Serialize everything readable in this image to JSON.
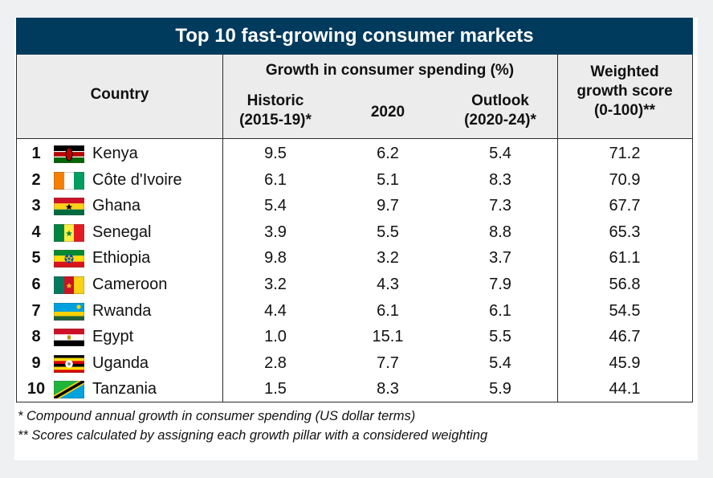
{
  "title": "Top 10 fast-growing consumer markets",
  "header": {
    "country": "Country",
    "group": "Growth in consumer spending (%)",
    "historic": "Historic\n(2015-19)*",
    "y2020": "2020",
    "outlook": "Outlook\n(2020-24)*",
    "score": "Weighted\ngrowth score\n(0-100)**"
  },
  "rows": [
    {
      "rank": "1",
      "country": "Kenya",
      "flag": "kenya-flag-icon",
      "historic": "9.5",
      "y2020": "6.2",
      "outlook": "5.4",
      "score": "71.2"
    },
    {
      "rank": "2",
      "country": "Côte d'Ivoire",
      "flag": "cote-divoire-flag-icon",
      "historic": "6.1",
      "y2020": "5.1",
      "outlook": "8.3",
      "score": "70.9"
    },
    {
      "rank": "3",
      "country": "Ghana",
      "flag": "ghana-flag-icon",
      "historic": "5.4",
      "y2020": "9.7",
      "outlook": "7.3",
      "score": "67.7"
    },
    {
      "rank": "4",
      "country": "Senegal",
      "flag": "senegal-flag-icon",
      "historic": "3.9",
      "y2020": "5.5",
      "outlook": "8.8",
      "score": "65.3"
    },
    {
      "rank": "5",
      "country": "Ethiopia",
      "flag": "ethiopia-flag-icon",
      "historic": "9.8",
      "y2020": "3.2",
      "outlook": "3.7",
      "score": "61.1"
    },
    {
      "rank": "6",
      "country": "Cameroon",
      "flag": "cameroon-flag-icon",
      "historic": "3.2",
      "y2020": "4.3",
      "outlook": "7.9",
      "score": "56.8"
    },
    {
      "rank": "7",
      "country": "Rwanda",
      "flag": "rwanda-flag-icon",
      "historic": "4.4",
      "y2020": "6.1",
      "outlook": "6.1",
      "score": "54.5"
    },
    {
      "rank": "8",
      "country": "Egypt",
      "flag": "egypt-flag-icon",
      "historic": "1.0",
      "y2020": "15.1",
      "outlook": "5.5",
      "score": "46.7"
    },
    {
      "rank": "9",
      "country": "Uganda",
      "flag": "uganda-flag-icon",
      "historic": "2.8",
      "y2020": "7.7",
      "outlook": "5.4",
      "score": "45.9"
    },
    {
      "rank": "10",
      "country": "Tanzania",
      "flag": "tanzania-flag-icon",
      "historic": "1.5",
      "y2020": "8.3",
      "outlook": "5.9",
      "score": "44.1"
    }
  ],
  "notes": [
    "* Compound annual growth in consumer spending (US dollar terms)",
    "** Scores calculated by assigning each growth pillar with a considered weighting"
  ],
  "colors": {
    "title_bar": "#003a5d",
    "header_bg": "#ececec"
  }
}
